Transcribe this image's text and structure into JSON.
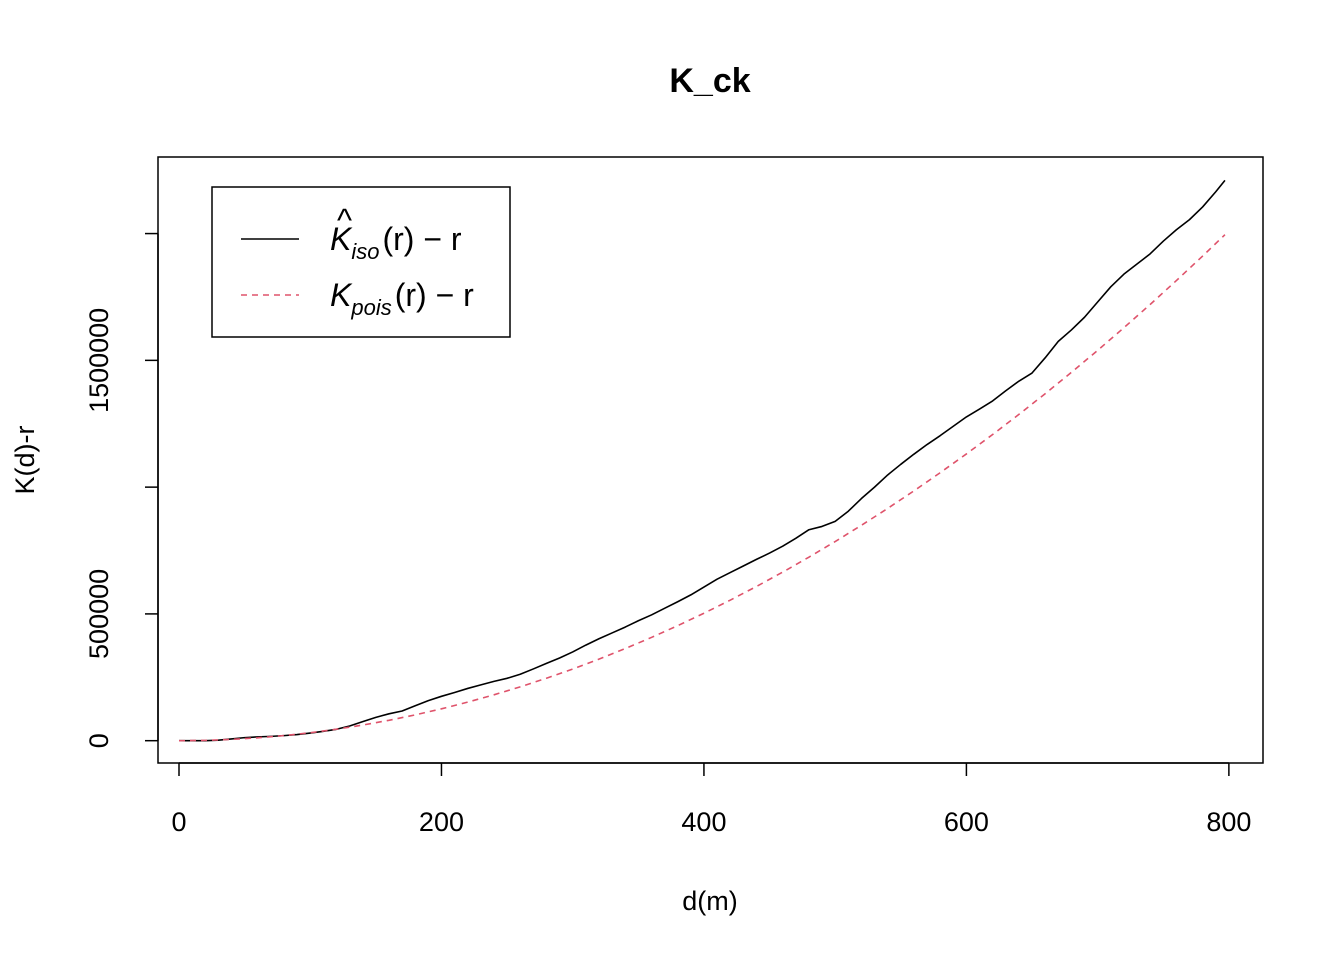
{
  "chart_data": {
    "type": "line",
    "title": "K_ck",
    "xlabel": "d(m)",
    "ylabel": "K(d)-r",
    "xlim": [
      -16,
      826
    ],
    "ylim": [
      -88000,
      2302000
    ],
    "x_ticks": [
      0,
      200,
      400,
      600,
      800
    ],
    "y_ticks": [
      0,
      500000,
      1000000,
      1500000,
      2000000
    ],
    "y_tick_labels": [
      "0",
      "500000",
      "",
      "1500000",
      ""
    ],
    "grid": false,
    "legend_position": "top-left",
    "series": [
      {
        "name": "K̂iso(r) − r",
        "name_main": "K",
        "name_sub": "iso",
        "name_rest": "(r) − r",
        "hat": true,
        "color": "#000000",
        "dash": "solid",
        "x": [
          0,
          10,
          20,
          30,
          40,
          50,
          60,
          70,
          80,
          90,
          100,
          110,
          120,
          130,
          140,
          150,
          160,
          170,
          180,
          190,
          200,
          210,
          220,
          230,
          240,
          250,
          260,
          270,
          280,
          290,
          300,
          310,
          320,
          330,
          340,
          350,
          360,
          370,
          380,
          390,
          400,
          410,
          420,
          430,
          440,
          450,
          460,
          470,
          480,
          490,
          500,
          510,
          520,
          530,
          540,
          550,
          560,
          570,
          580,
          590,
          600,
          610,
          620,
          630,
          640,
          650,
          660,
          670,
          680,
          690,
          700,
          710,
          720,
          730,
          740,
          750,
          760,
          770,
          780,
          790,
          797
        ],
        "y": [
          0,
          0,
          0,
          2000,
          7000,
          12000,
          15000,
          17000,
          20000,
          24000,
          30000,
          37000,
          45000,
          58000,
          75000,
          92000,
          106000,
          117000,
          138000,
          158000,
          175000,
          190000,
          206000,
          220000,
          234000,
          246000,
          262000,
          283000,
          305000,
          326000,
          350000,
          377000,
          402000,
          425000,
          448000,
          473000,
          496000,
          522000,
          548000,
          575000,
          606000,
          637000,
          663000,
          689000,
          715000,
          740000,
          767000,
          798000,
          832000,
          845000,
          865000,
          905000,
          955000,
          1000000,
          1048000,
          1090000,
          1130000,
          1168000,
          1203000,
          1240000,
          1277000,
          1308000,
          1340000,
          1380000,
          1418000,
          1450000,
          1510000,
          1575000,
          1620000,
          1670000,
          1730000,
          1790000,
          1840000,
          1880000,
          1920000,
          1970000,
          2015000,
          2055000,
          2105000,
          2165000,
          2210000
        ]
      },
      {
        "name": "Kpois(r) − r",
        "name_main": "K",
        "name_sub": "pois",
        "name_rest": "(r) − r",
        "hat": false,
        "color": "#DF536B",
        "dash": "dashed",
        "x": [
          0,
          20,
          40,
          60,
          80,
          100,
          120,
          140,
          160,
          180,
          200,
          220,
          240,
          260,
          280,
          300,
          320,
          340,
          360,
          380,
          400,
          420,
          440,
          460,
          480,
          500,
          520,
          540,
          560,
          580,
          600,
          620,
          640,
          660,
          680,
          700,
          720,
          740,
          760,
          780,
          797
        ],
        "y": [
          0,
          1257,
          5027,
          11310,
          20106,
          31416,
          45239,
          61575,
          80425,
          101788,
          125664,
          152053,
          180956,
          212372,
          246301,
          282743,
          321699,
          363168,
          407150,
          453646,
          502655,
          554177,
          608212,
          664761,
          723823,
          785398,
          849487,
          916088,
          985203,
          1056832,
          1130973,
          1207628,
          1286796,
          1368478,
          1452672,
          1539380,
          1628602,
          1720336,
          1814584,
          1911345,
          1995617
        ]
      }
    ]
  }
}
